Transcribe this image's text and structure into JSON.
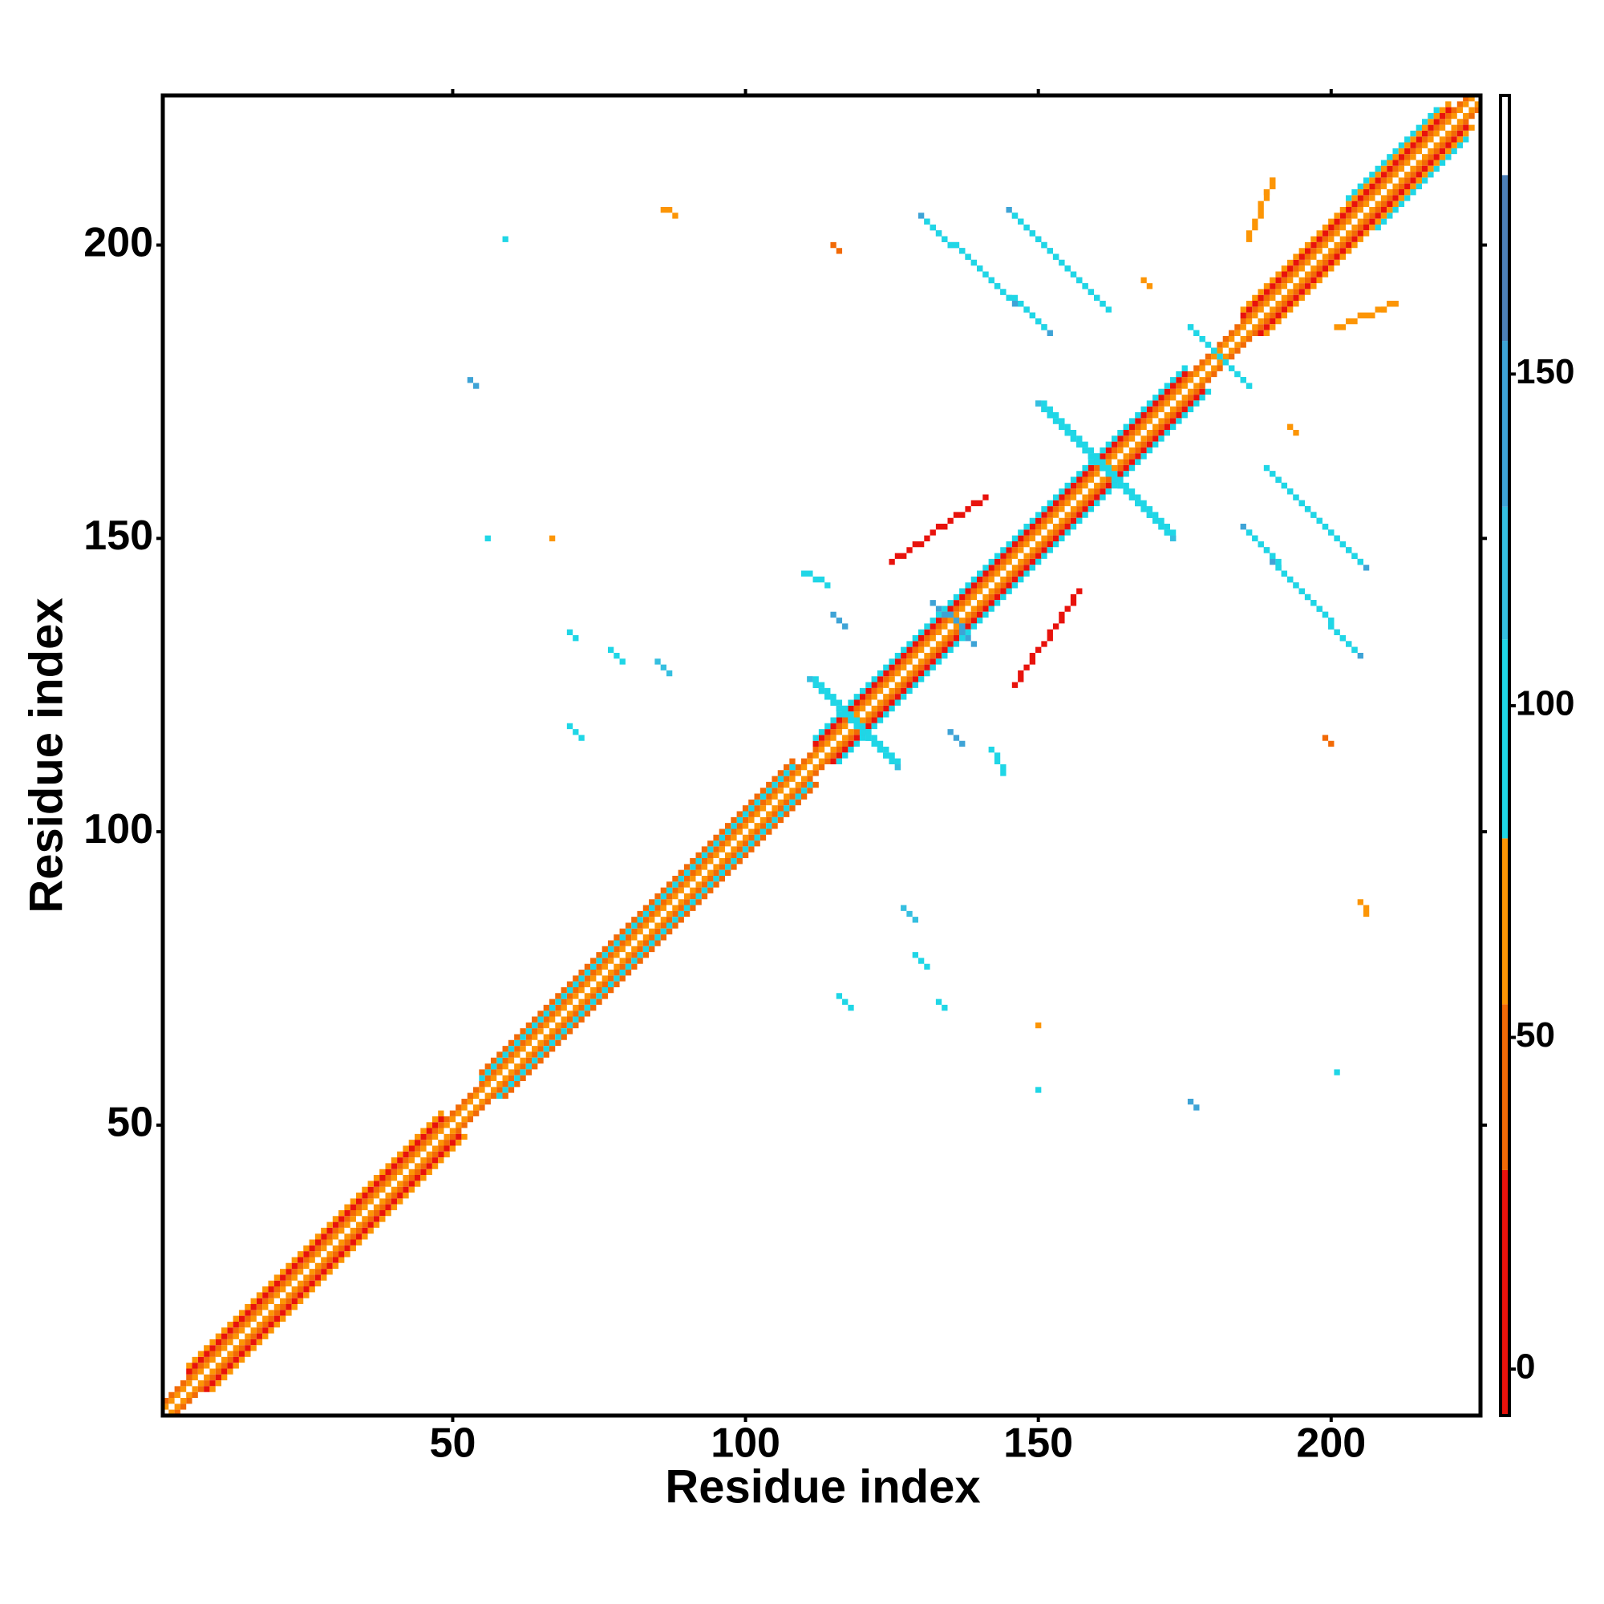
{
  "chart_data": {
    "type": "heatmap",
    "x_label": "Residue index",
    "y_label": "Residue index",
    "xlim": [
      0.5,
      225.5
    ],
    "ylim": [
      0.5,
      225.5
    ],
    "xticks": [
      50,
      100,
      150,
      200
    ],
    "yticks": [
      50,
      100,
      150,
      200
    ],
    "symmetric": true,
    "colorbar": {
      "lim": [
        -7,
        192
      ],
      "ticks": [
        0,
        50,
        100,
        150
      ],
      "levels": [
        {
          "from": -7,
          "to": 30,
          "color": "#e8120c"
        },
        {
          "from": 30,
          "to": 55,
          "color": "#f26a06"
        },
        {
          "from": 55,
          "to": 80,
          "color": "#fc9505"
        },
        {
          "from": 80,
          "to": 110,
          "color": "#1fd6e6"
        },
        {
          "from": 110,
          "to": 130,
          "color": "#35bfe0"
        },
        {
          "from": 130,
          "to": 155,
          "color": "#3ea3d6"
        },
        {
          "from": 155,
          "to": 180,
          "color": "#4d80b8"
        },
        {
          "from": 180,
          "to": 192,
          "color": "#ffffff"
        }
      ]
    },
    "segments": [
      {
        "x": [
          1,
          225
        ],
        "y": [
          1,
          225
        ],
        "value": 190
      },
      {
        "x": [
          1,
          224
        ],
        "y": [
          2,
          225
        ],
        "value": 65
      },
      {
        "x": [
          1,
          223
        ],
        "y": [
          3,
          225
        ],
        "value": 45
      },
      {
        "x": [
          5,
          48
        ],
        "y": [
          8,
          51
        ],
        "value": 20
      },
      {
        "x": [
          5,
          48
        ],
        "y": [
          9,
          52
        ],
        "value": 60
      },
      {
        "x": [
          55,
          108
        ],
        "y": [
          58,
          111
        ],
        "value": 95
      },
      {
        "x": [
          55,
          108
        ],
        "y": [
          59,
          112
        ],
        "value": 55
      },
      {
        "x": [
          112,
          175
        ],
        "y": [
          115,
          178
        ],
        "value": 15
      },
      {
        "x": [
          112,
          175
        ],
        "y": [
          116,
          179
        ],
        "value": 95
      },
      {
        "x": [
          185,
          220
        ],
        "y": [
          188,
          223
        ],
        "value": 25
      },
      {
        "x": [
          203,
          218
        ],
        "y": [
          208,
          223
        ],
        "value": 100
      },
      {
        "x": [
          185,
          220
        ],
        "y": [
          189,
          224
        ],
        "value": 60
      },
      {
        "x": [
          130,
          152
        ],
        "y": [
          205,
          185
        ],
        "value": 140
      },
      {
        "x": [
          131,
          151
        ],
        "y": [
          204,
          186
        ],
        "value": 105
      },
      {
        "x": [
          145,
          161
        ],
        "y": [
          206,
          190
        ],
        "value": 135
      },
      {
        "x": [
          146,
          162
        ],
        "y": [
          205,
          189
        ],
        "value": 100
      },
      {
        "x": [
          150,
          173
        ],
        "y": [
          173,
          150
        ],
        "value": 120
      },
      {
        "x": [
          151,
          172
        ],
        "y": [
          173,
          151
        ],
        "value": 95
      },
      {
        "x": [
          111,
          126
        ],
        "y": [
          126,
          111
        ],
        "value": 130
      },
      {
        "x": [
          112,
          125
        ],
        "y": [
          126,
          112
        ],
        "value": 100
      },
      {
        "x": [
          176,
          186
        ],
        "y": [
          186,
          176
        ],
        "value": 100
      },
      {
        "x": [
          132,
          137
        ],
        "y": [
          139,
          135
        ],
        "value": 140
      },
      {
        "x": [
          115,
          117
        ],
        "y": [
          137,
          135
        ],
        "value": 145
      },
      {
        "x": [
          125,
          141
        ],
        "y": [
          146,
          157
        ],
        "value": 15
      },
      {
        "x": [
          53,
          54
        ],
        "y": [
          177,
          176
        ],
        "value": 145
      },
      {
        "x": [
          86,
          88
        ],
        "y": [
          206,
          205
        ],
        "value": 60
      },
      {
        "x": [
          59,
          59
        ],
        "y": [
          201,
          201
        ],
        "value": 100
      },
      {
        "x": [
          115,
          116
        ],
        "y": [
          200,
          199
        ],
        "value": 55
      },
      {
        "x": [
          70,
          71
        ],
        "y": [
          134,
          133
        ],
        "value": 105
      },
      {
        "x": [
          77,
          79
        ],
        "y": [
          131,
          129
        ],
        "value": 100
      },
      {
        "x": [
          85,
          87
        ],
        "y": [
          129,
          127
        ],
        "value": 130
      },
      {
        "x": [
          70,
          72
        ],
        "y": [
          118,
          116
        ],
        "value": 100
      },
      {
        "x": [
          56,
          56
        ],
        "y": [
          150,
          150
        ],
        "value": 100
      },
      {
        "x": [
          67,
          67
        ],
        "y": [
          150,
          150
        ],
        "value": 60
      },
      {
        "x": [
          110,
          114
        ],
        "y": [
          144,
          142
        ],
        "value": 100
      },
      {
        "x": [
          168,
          169
        ],
        "y": [
          194,
          193
        ],
        "value": 60
      },
      {
        "x": [
          209,
          211
        ],
        "y": [
          189,
          190
        ],
        "value": 60
      },
      {
        "x": [
          186,
          190
        ],
        "y": [
          201,
          211
        ],
        "value": 60
      }
    ]
  }
}
